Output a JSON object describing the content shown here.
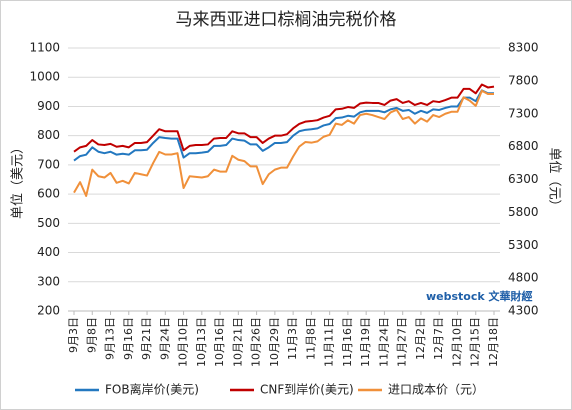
{
  "chart_data": {
    "type": "line",
    "title": "马来西亚进口棕榈油完税价格",
    "ylabel": "单位（美元）",
    "y2label": "单位（元）",
    "watermark": "webstock 文華財經",
    "categories": [
      "9月3日",
      null,
      null,
      "9月8日",
      null,
      null,
      "9月13日",
      null,
      null,
      "9月16日",
      null,
      null,
      "9月21日",
      null,
      null,
      "9月24日",
      null,
      null,
      "10月10日",
      null,
      null,
      "10月13日",
      null,
      null,
      "10月16日",
      null,
      null,
      "10月21日",
      null,
      null,
      "10月26日",
      null,
      null,
      "10月29日",
      null,
      null,
      "11月3日",
      null,
      null,
      "11月8日",
      null,
      null,
      "11月11日",
      null,
      null,
      "11月16日",
      null,
      null,
      "11月19日",
      null,
      null,
      "11月24日",
      null,
      null,
      "11月27日",
      null,
      null,
      "12月2日",
      null,
      null,
      "12月7日",
      null,
      null,
      "12月10日",
      null,
      null,
      "12月15日",
      null,
      null,
      "12月18日"
    ],
    "ylim": [
      200,
      1100
    ],
    "yticks": [
      200,
      300,
      400,
      500,
      600,
      700,
      800,
      900,
      1000,
      1100
    ],
    "y2lim": [
      4300,
      8300
    ],
    "y2ticks": [
      4300,
      4800,
      5300,
      5800,
      6300,
      6800,
      7300,
      7800,
      8300
    ],
    "grid": true,
    "legend": "bottom",
    "series": [
      {
        "name": "FOB离岸价(美元)",
        "color": "#2378c0",
        "values": [
          715,
          730,
          735,
          760,
          745,
          740,
          745,
          735,
          738,
          735,
          750,
          750,
          752,
          775,
          795,
          792,
          790,
          790,
          725,
          740,
          740,
          742,
          745,
          765,
          765,
          768,
          790,
          785,
          783,
          770,
          770,
          748,
          760,
          775,
          775,
          778,
          800,
          815,
          820,
          822,
          825,
          835,
          840,
          860,
          862,
          868,
          865,
          880,
          885,
          885,
          885,
          880,
          890,
          895,
          885,
          888,
          875,
          885,
          878,
          890,
          888,
          895,
          900,
          900,
          930,
          930,
          918,
          955,
          945,
          945
        ]
      },
      {
        "name": "CNF到岸价(美元)",
        "color": "#c00000",
        "values": [
          745,
          760,
          765,
          785,
          770,
          768,
          772,
          762,
          765,
          760,
          775,
          775,
          778,
          800,
          822,
          815,
          815,
          815,
          750,
          765,
          768,
          768,
          770,
          790,
          792,
          792,
          815,
          808,
          808,
          795,
          795,
          775,
          790,
          800,
          800,
          805,
          825,
          840,
          848,
          850,
          853,
          862,
          868,
          890,
          892,
          898,
          895,
          910,
          913,
          912,
          912,
          905,
          920,
          925,
          912,
          918,
          905,
          912,
          905,
          918,
          915,
          922,
          930,
          930,
          960,
          960,
          945,
          975,
          965,
          968
        ]
      },
      {
        "name": "进口成本价（元）",
        "color": "#f0903a",
        "axis": "y2",
        "values": [
          6100,
          6260,
          6050,
          6450,
          6350,
          6330,
          6400,
          6250,
          6280,
          6240,
          6400,
          6380,
          6360,
          6550,
          6720,
          6680,
          6680,
          6700,
          6170,
          6350,
          6340,
          6330,
          6350,
          6450,
          6420,
          6420,
          6660,
          6600,
          6580,
          6500,
          6500,
          6230,
          6380,
          6450,
          6480,
          6480,
          6650,
          6800,
          6870,
          6860,
          6880,
          6950,
          6980,
          7150,
          7130,
          7200,
          7150,
          7280,
          7300,
          7280,
          7250,
          7220,
          7320,
          7360,
          7220,
          7250,
          7150,
          7230,
          7180,
          7280,
          7250,
          7300,
          7330,
          7330,
          7550,
          7500,
          7420,
          7650,
          7600,
          7600
        ]
      }
    ]
  }
}
